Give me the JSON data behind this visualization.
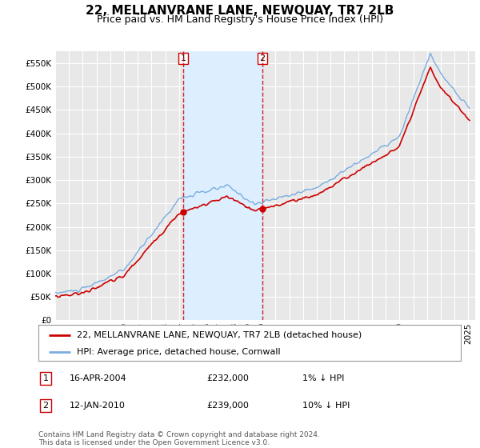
{
  "title": "22, MELLANVRANE LANE, NEWQUAY, TR7 2LB",
  "subtitle": "Price paid vs. HM Land Registry's House Price Index (HPI)",
  "ylim": [
    0,
    575000
  ],
  "yticks": [
    0,
    50000,
    100000,
    150000,
    200000,
    250000,
    300000,
    350000,
    400000,
    450000,
    500000,
    550000
  ],
  "background_color": "#ffffff",
  "plot_bg_color": "#e8e8e8",
  "grid_color": "#ffffff",
  "xmin": 1995,
  "xmax": 2025.5,
  "purchases": [
    {
      "date_num": 2004.29,
      "price": 232000,
      "label": "1"
    },
    {
      "date_num": 2010.04,
      "price": 239000,
      "label": "2"
    }
  ],
  "highlight_color": "#ddeeff",
  "legend_label_property": "22, MELLANVRANE LANE, NEWQUAY, TR7 2LB (detached house)",
  "legend_label_hpi": "HPI: Average price, detached house, Cornwall",
  "table_rows": [
    {
      "num": "1",
      "date": "16-APR-2004",
      "price": "£232,000",
      "pct": "1% ↓ HPI"
    },
    {
      "num": "2",
      "date": "12-JAN-2010",
      "price": "£239,000",
      "pct": "10% ↓ HPI"
    }
  ],
  "footnote": "Contains HM Land Registry data © Crown copyright and database right 2024.\nThis data is licensed under the Open Government Licence v3.0.",
  "property_line_color": "#cc0000",
  "hpi_line_color": "#7aade0",
  "purchase_marker_color": "#cc0000",
  "vline_color": "#cc0000",
  "title_fontsize": 11,
  "subtitle_fontsize": 9,
  "tick_fontsize": 7.5,
  "legend_fontsize": 8,
  "table_fontsize": 8,
  "footnote_fontsize": 6.5
}
